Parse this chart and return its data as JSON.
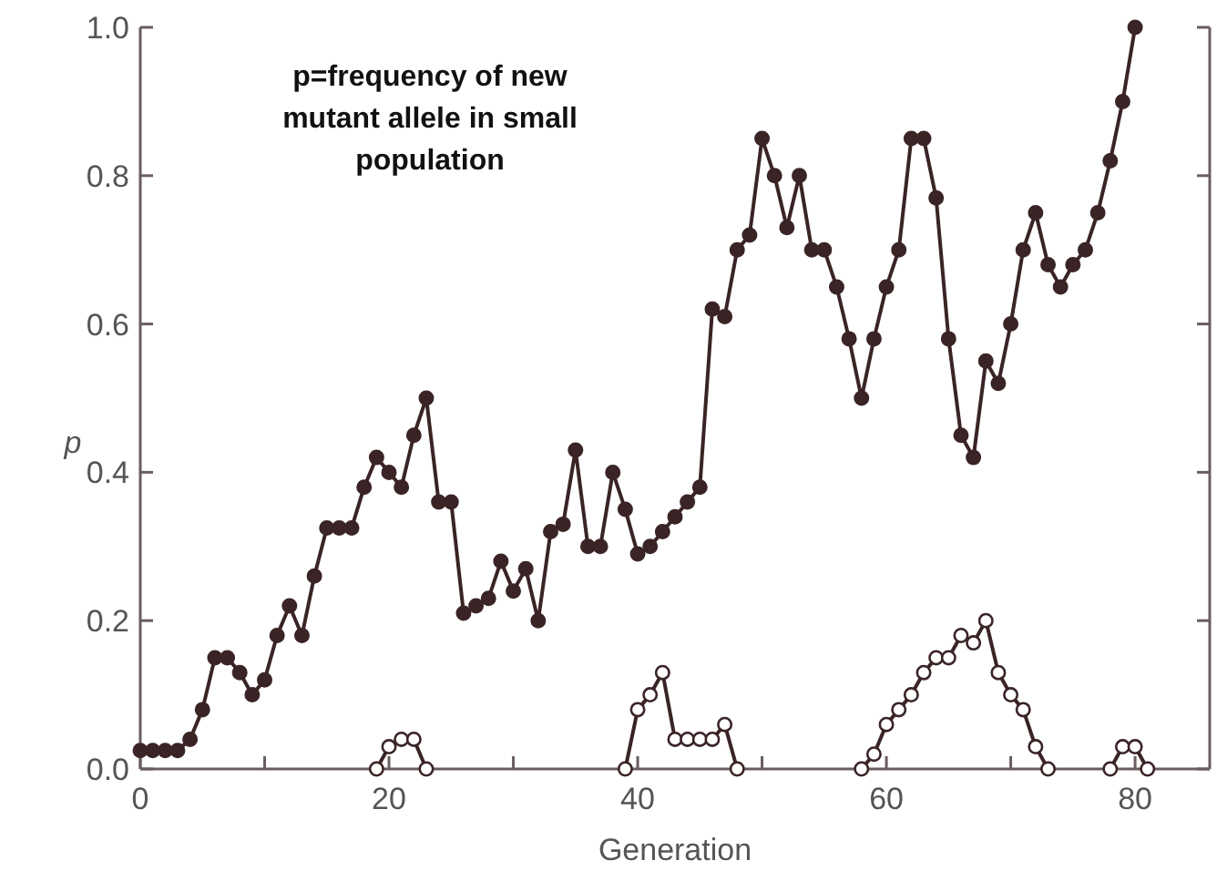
{
  "chart_data": {
    "type": "line",
    "xlabel": "Generation",
    "ylabel": "p",
    "annotations": [
      "p=frequency of new mutant allele in small population"
    ],
    "xlim": [
      0,
      86
    ],
    "ylim": [
      0,
      1.0
    ],
    "xticks": [
      0,
      {
        "value": 10,
        "label": null
      },
      20,
      {
        "value": 30,
        "label": null
      },
      40,
      {
        "value": 50,
        "label": null
      },
      60,
      {
        "value": 70,
        "label": null
      },
      80
    ],
    "yticks": [
      {
        "value": 0,
        "label": "0.0"
      },
      {
        "value": 0.2,
        "label": "0.2"
      },
      {
        "value": 0.4,
        "label": "0.4"
      },
      {
        "value": 0.6,
        "label": "0.6"
      },
      {
        "value": 0.8,
        "label": "0.8"
      },
      {
        "value": 1.0,
        "label": "1.0"
      }
    ],
    "marker": "circle",
    "grid": false,
    "series": [
      {
        "color": "#3a2426",
        "x": [
          0,
          1,
          2,
          3,
          4,
          5,
          6,
          7,
          8,
          9,
          10,
          11,
          12,
          13,
          14,
          15,
          16,
          17,
          18,
          19,
          20,
          21,
          22,
          23,
          24,
          25,
          26,
          27,
          28,
          29,
          30,
          31,
          32,
          33,
          34,
          35,
          36,
          37,
          38,
          39,
          40,
          41,
          42,
          43,
          44,
          45,
          46,
          47,
          48,
          49,
          50,
          51,
          52,
          53,
          54,
          55,
          56,
          57,
          58,
          59,
          60,
          61,
          62,
          63,
          64,
          65,
          66,
          67,
          68,
          69,
          70,
          71,
          72,
          73,
          74,
          75,
          76,
          77,
          78,
          79,
          80
        ],
        "values": [
          0.025,
          0.025,
          0.025,
          0.025,
          0.04,
          0.08,
          0.15,
          0.15,
          0.13,
          0.1,
          0.12,
          0.18,
          0.22,
          0.18,
          0.26,
          0.325,
          0.325,
          0.325,
          0.38,
          0.42,
          0.4,
          0.38,
          0.45,
          0.5,
          0.36,
          0.36,
          0.21,
          0.22,
          0.23,
          0.28,
          0.24,
          0.27,
          0.2,
          0.32,
          0.33,
          0.43,
          0.3,
          0.3,
          0.4,
          0.35,
          0.29,
          0.3,
          0.32,
          0.34,
          0.36,
          0.38,
          0.62,
          0.61,
          0.7,
          0.72,
          0.85,
          0.8,
          0.73,
          0.8,
          0.7,
          0.7,
          0.65,
          0.58,
          0.5,
          0.58,
          0.65,
          0.7,
          0.85,
          0.85,
          0.77,
          0.58,
          0.45,
          0.42,
          0.55,
          0.52,
          0.6,
          0.7,
          0.75,
          0.68,
          0.65,
          0.68,
          0.7,
          0.75,
          0.82,
          0.9,
          1.0
        ]
      },
      {
        "color": "#3a2426",
        "x": [
          19,
          20,
          21,
          22,
          23,
          30,
          39,
          40,
          41,
          42,
          43,
          44,
          45,
          46,
          47,
          48,
          50,
          58,
          59,
          60,
          61,
          62,
          63,
          64,
          65,
          66,
          67,
          68,
          69,
          70,
          71,
          72,
          73,
          75,
          78,
          79,
          80,
          81
        ],
        "values": [
          0,
          0.03,
          0.04,
          0.04,
          0,
          null,
          0,
          0.08,
          0.1,
          0.13,
          0.04,
          0.04,
          0.04,
          0.04,
          0.06,
          0,
          null,
          0,
          0.02,
          0.06,
          0.08,
          0.1,
          0.13,
          0.15,
          0.15,
          0.18,
          0.17,
          0.2,
          0.13,
          0.1,
          0.08,
          0.03,
          0,
          null,
          0,
          0.03,
          0.03,
          0
        ]
      }
    ]
  }
}
